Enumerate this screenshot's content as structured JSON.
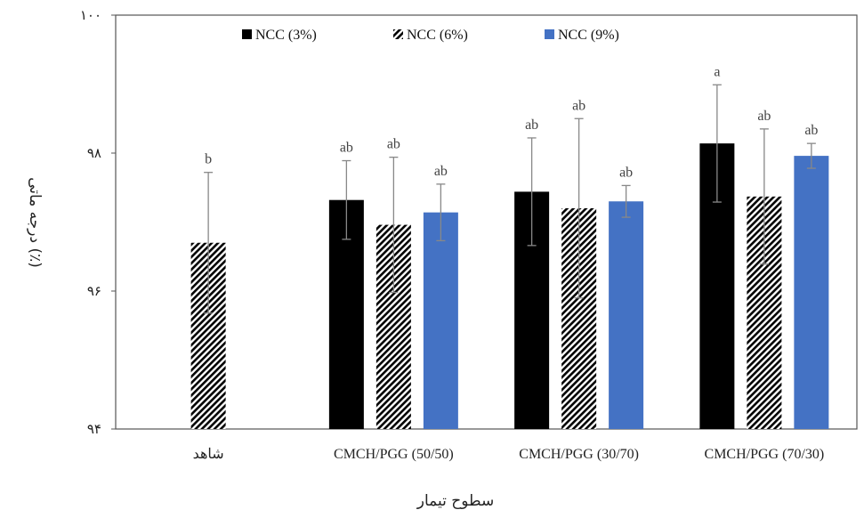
{
  "chart_data": {
    "type": "bar",
    "xlabel": "سطوح تیمار",
    "ylabel": "درجه ماتی (٪)",
    "ylim": [
      94,
      100
    ],
    "yticks": [
      94,
      96,
      98,
      100
    ],
    "ytick_labels": [
      "۹۴",
      "۹۶",
      "۹۸",
      "۱۰۰"
    ],
    "categories": [
      "شاهد",
      "CMCH/PGG (50/50)",
      "CMCH/PGG (30/70)",
      "CMCH/PGG (70/30)"
    ],
    "series": [
      {
        "name": "NCC (3%)",
        "color": "#000000",
        "pattern": "solid",
        "values": [
          null,
          97.32,
          97.44,
          98.14
        ],
        "errors": [
          null,
          0.57,
          0.78,
          0.85
        ],
        "labels": [
          null,
          "ab",
          "ab",
          "a"
        ]
      },
      {
        "name": "NCC (6%)",
        "color": "#000000",
        "pattern": "hatch",
        "values": [
          96.7,
          96.96,
          97.2,
          97.37
        ],
        "errors": [
          1.02,
          0.98,
          1.3,
          0.98
        ],
        "labels": [
          "b",
          "ab",
          "ab",
          "ab"
        ]
      },
      {
        "name": "NCC (9%)",
        "color": "#4472C4",
        "pattern": "solid",
        "values": [
          null,
          97.14,
          97.3,
          97.96
        ],
        "errors": [
          null,
          0.41,
          0.23,
          0.18
        ],
        "labels": [
          null,
          "ab",
          "ab",
          "ab"
        ]
      }
    ],
    "legend_position": "top",
    "grid": false
  }
}
